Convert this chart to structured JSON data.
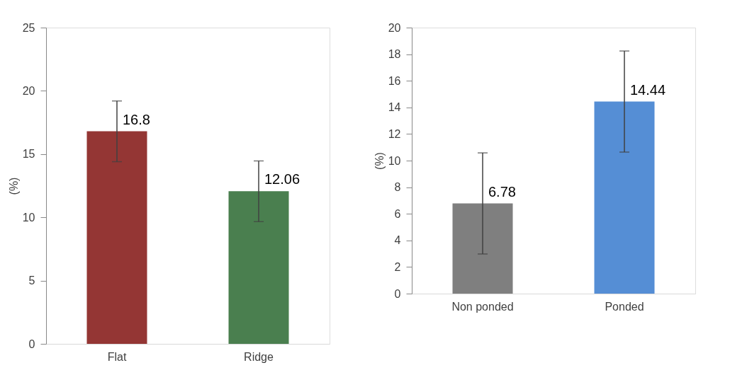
{
  "chart_data": [
    {
      "type": "bar",
      "ylabel": "(%)",
      "categories": [
        "Flat",
        "Ridge"
      ],
      "values": [
        16.8,
        12.06
      ],
      "colors": [
        "#943634",
        "#4a7f4f"
      ],
      "errors": [
        2.4,
        2.4
      ],
      "ylim": [
        0,
        25
      ],
      "yticks": [
        0,
        5,
        10,
        15,
        20,
        25
      ],
      "data_labels": true,
      "grid": false,
      "legend": false
    },
    {
      "type": "bar",
      "ylabel": "(%)",
      "categories": [
        "Non ponded",
        "Ponded"
      ],
      "values": [
        6.78,
        14.44
      ],
      "colors": [
        "#7f7f7f",
        "#558ed5"
      ],
      "errors": [
        3.8,
        3.8
      ],
      "ylim": [
        0,
        20
      ],
      "yticks": [
        0,
        2,
        4,
        6,
        8,
        10,
        12,
        14,
        16,
        18,
        20
      ],
      "data_labels": true,
      "grid": false,
      "legend": false
    }
  ]
}
